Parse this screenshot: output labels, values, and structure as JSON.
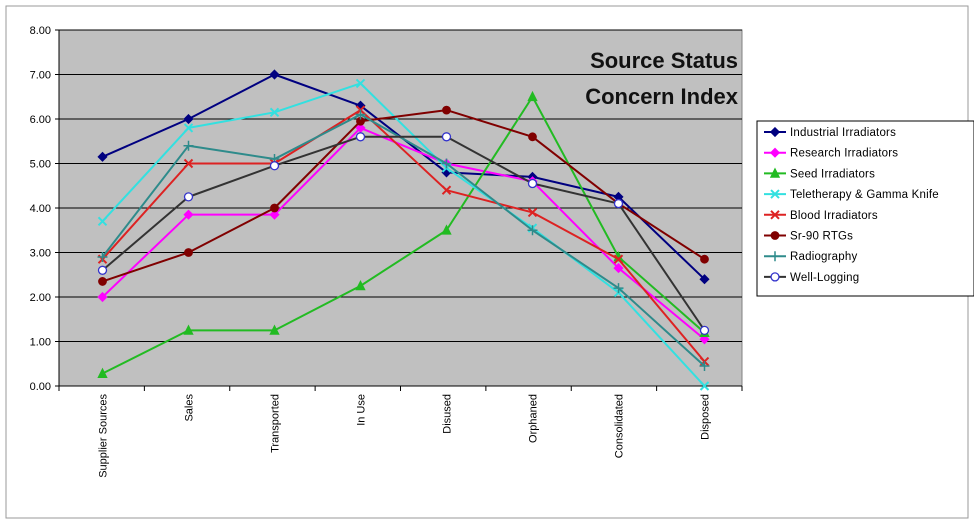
{
  "chart_data": {
    "type": "line",
    "title_line1": "Source Status",
    "title_line2": "Concern Index",
    "xlabel": "",
    "ylabel": "",
    "ylim": [
      0,
      8
    ],
    "y_ticks": [
      "0.00",
      "1.00",
      "2.00",
      "3.00",
      "4.00",
      "5.00",
      "6.00",
      "7.00",
      "8.00"
    ],
    "categories": [
      "Supplier Sources",
      "Sales",
      "Transported",
      "In Use",
      "Disused",
      "Orphaned",
      "Consolidated",
      "Disposed"
    ],
    "grid": "horizontal",
    "legend_position": "right",
    "plot_background": "#c0c0c0",
    "series": [
      {
        "name": "Industrial  Irradiators",
        "color": "#000080",
        "marker": "diamond",
        "values": [
          5.15,
          6.0,
          7.0,
          6.3,
          4.8,
          4.7,
          4.25,
          2.4
        ]
      },
      {
        "name": "Research  Irradiators",
        "color": "#ff00ff",
        "marker": "diamond",
        "values": [
          2.0,
          3.85,
          3.85,
          5.8,
          5.0,
          4.6,
          2.65,
          1.05
        ]
      },
      {
        "name": "Seed  Irradiators",
        "color": "#22bb22",
        "marker": "triangle",
        "values": [
          0.28,
          1.25,
          1.25,
          2.25,
          3.5,
          6.5,
          2.9,
          1.2
        ]
      },
      {
        "name": "Teletherapy  &  Gamma  Knife",
        "color": "#33e0e0",
        "marker": "x",
        "values": [
          3.7,
          5.8,
          6.15,
          6.8,
          4.9,
          3.55,
          2.1,
          0.0
        ]
      },
      {
        "name": "Blood  Irradiators",
        "color": "#dd2222",
        "marker": "x",
        "values": [
          2.85,
          5.0,
          5.0,
          6.2,
          4.4,
          3.9,
          2.85,
          0.55
        ]
      },
      {
        "name": "Sr-90  RTGs",
        "color": "#800000",
        "marker": "circle",
        "values": [
          2.35,
          3.0,
          4.0,
          5.95,
          6.2,
          5.6,
          4.1,
          2.85
        ]
      },
      {
        "name": "Radiography",
        "color": "#2e8b8b",
        "marker": "plus",
        "values": [
          2.9,
          5.4,
          5.1,
          6.1,
          5.0,
          3.5,
          2.2,
          0.45
        ]
      },
      {
        "name": "Well-Logging",
        "color": "#333333",
        "marker": "opencircle",
        "values": [
          2.6,
          4.25,
          4.95,
          5.6,
          5.6,
          4.55,
          4.1,
          1.25
        ]
      }
    ]
  }
}
